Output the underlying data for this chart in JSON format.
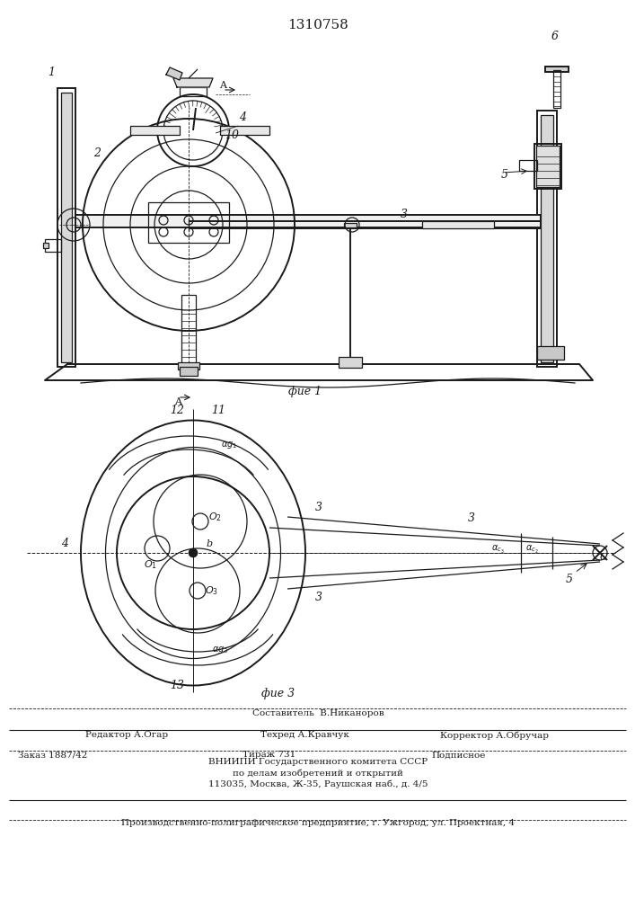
{
  "title": "1310758",
  "fig1_caption": "фие 1",
  "fig3_caption": "фие 3",
  "bg_color": "#ffffff",
  "lc": "#1a1a1a",
  "footer": {
    "line1": "Составитель  В.Никаноров",
    "editor": "Редактор А.Огар",
    "tekhred": "Техред А.Кравчук",
    "corrector": "Корректор А.Обручар",
    "order": "Заказ 1887/42",
    "tirazh": "Тираж 731",
    "podpisnoe": "Подписное",
    "vnipi1": "ВНИИПИ Государственного комитета СССР",
    "vnipi2": "по делам изобретений и открытий",
    "vnipi3": "113035, Москва, Ж-35, Раушская наб., д. 4/5",
    "predp": "Производственно-полиграфическое предприятие, г. Ужгород, ул. Проектная, 4"
  }
}
